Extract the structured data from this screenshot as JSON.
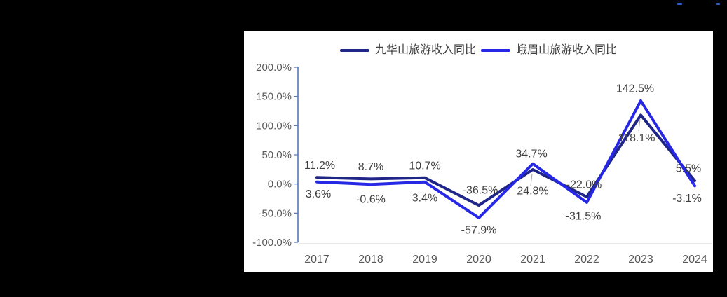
{
  "colors": {
    "background": "#000000",
    "panel": "#FFFFFF",
    "y_axis": "#4F6EB8",
    "x_axis_line": "#D9D9D9",
    "tick_label": "#595959",
    "data_label": "#3F3F3F",
    "legend_text": "#404040",
    "leader_line": "#A6A6A6",
    "artifact": "#2E5FD0",
    "series_jiuhuashan": "#1F2688",
    "series_emeishan": "#2727E6"
  },
  "legend": {
    "items": [
      {
        "label": "九华山旅游收入同比",
        "color": "#1F2688"
      },
      {
        "label": "峨眉山旅游收入同比",
        "color": "#2727E6"
      }
    ]
  },
  "chart_data": {
    "type": "line",
    "title": "",
    "categories": [
      "2017",
      "2018",
      "2019",
      "2020",
      "2021",
      "2022",
      "2023",
      "2024"
    ],
    "series": [
      {
        "name": "九华山旅游收入同比",
        "color": "#1F2688",
        "values": [
          11.2,
          8.7,
          10.7,
          -36.5,
          24.8,
          -22.0,
          118.1,
          5.5
        ],
        "labels": [
          "11.2%",
          "8.7%",
          "10.7%",
          "-36.5%",
          "24.8%",
          "-22.0%",
          "118.1%",
          "5.5%"
        ],
        "label_positions": [
          "above",
          "above",
          "above",
          "above",
          "below-leader",
          "above",
          "below-leader",
          "above"
        ],
        "label_dx": [
          4,
          0,
          0,
          2,
          0,
          -4,
          -6,
          -9
        ],
        "label_dy": [
          0,
          0,
          0,
          -4,
          0,
          0,
          2,
          0
        ]
      },
      {
        "name": "峨眉山旅游收入同比",
        "color": "#2727E6",
        "values": [
          3.6,
          -0.6,
          3.4,
          -57.9,
          34.7,
          -31.5,
          142.5,
          -3.1
        ],
        "labels": [
          "3.6%",
          "-0.6%",
          "3.4%",
          "-57.9%",
          "34.7%",
          "-31.5%",
          "142.5%",
          "-3.1%"
        ],
        "label_positions": [
          "below",
          "below",
          "below",
          "below",
          "above",
          "below",
          "above",
          "below"
        ],
        "label_dx": [
          2,
          0,
          0,
          0,
          -2,
          -5,
          -8,
          -11
        ],
        "label_dy": [
          0,
          4,
          5,
          0,
          3,
          2,
          0,
          0
        ]
      }
    ],
    "ylim": [
      -100,
      200
    ],
    "ytick_interval": 50,
    "ytick_labels": [
      "200.0%",
      "150.0%",
      "100.0%",
      "50.0%",
      "0.0%",
      "-50.0%",
      "-100.0%"
    ],
    "grid": false,
    "legend_position": "top"
  }
}
